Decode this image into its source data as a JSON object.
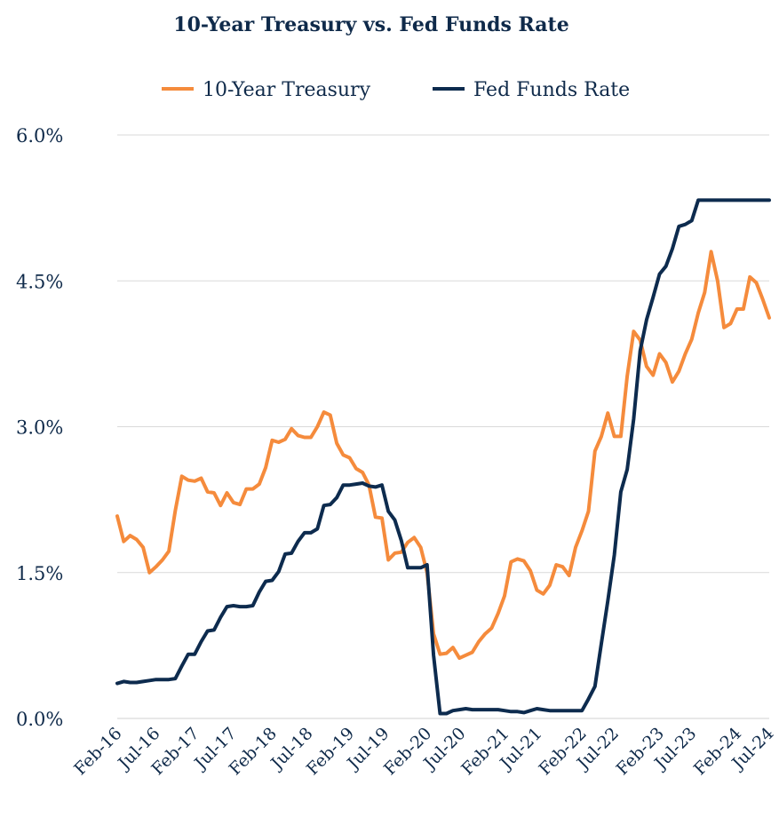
{
  "chart_data": {
    "type": "line",
    "title": "10-Year Treasury vs. Fed Funds Rate",
    "xlabel": "",
    "ylabel": "",
    "ylim": [
      0,
      6
    ],
    "yticks": [
      "0.0%",
      "1.5%",
      "3.0%",
      "4.5%",
      "6.0%"
    ],
    "grid": true,
    "legend_position": "top-center",
    "x_tick_labels": [
      "Feb-16",
      "Jul-16",
      "Feb-17",
      "Jul-17",
      "Feb-18",
      "Jul-18",
      "Feb-19",
      "Jul-19",
      "Feb-20",
      "Jul-20",
      "Feb-21",
      "Jul-21",
      "Feb-22",
      "Jul-22",
      "Feb-23",
      "Jul-23",
      "Feb-24",
      "Jul-24"
    ],
    "x_range": [
      "2016-02",
      "2024-07"
    ],
    "series": [
      {
        "name": "10-Year Treasury",
        "color": "#f58b3c",
        "points": [
          [
            "2016-02",
            2.08
          ],
          [
            "2016-03",
            1.82
          ],
          [
            "2016-04",
            1.88
          ],
          [
            "2016-05",
            1.84
          ],
          [
            "2016-06",
            1.76
          ],
          [
            "2016-07",
            1.5
          ],
          [
            "2016-08",
            1.56
          ],
          [
            "2016-09",
            1.63
          ],
          [
            "2016-10",
            1.72
          ],
          [
            "2016-11",
            2.14
          ],
          [
            "2016-12",
            2.49
          ],
          [
            "2017-01",
            2.45
          ],
          [
            "2017-02",
            2.44
          ],
          [
            "2017-03",
            2.47
          ],
          [
            "2017-04",
            2.33
          ],
          [
            "2017-05",
            2.32
          ],
          [
            "2017-06",
            2.19
          ],
          [
            "2017-07",
            2.32
          ],
          [
            "2017-08",
            2.22
          ],
          [
            "2017-09",
            2.2
          ],
          [
            "2017-10",
            2.36
          ],
          [
            "2017-11",
            2.36
          ],
          [
            "2017-12",
            2.41
          ],
          [
            "2018-01",
            2.58
          ],
          [
            "2018-02",
            2.86
          ],
          [
            "2018-03",
            2.84
          ],
          [
            "2018-04",
            2.87
          ],
          [
            "2018-05",
            2.98
          ],
          [
            "2018-06",
            2.91
          ],
          [
            "2018-07",
            2.89
          ],
          [
            "2018-08",
            2.89
          ],
          [
            "2018-09",
            3.0
          ],
          [
            "2018-10",
            3.15
          ],
          [
            "2018-11",
            3.12
          ],
          [
            "2018-12",
            2.83
          ],
          [
            "2019-01",
            2.71
          ],
          [
            "2019-02",
            2.68
          ],
          [
            "2019-03",
            2.57
          ],
          [
            "2019-04",
            2.53
          ],
          [
            "2019-05",
            2.4
          ],
          [
            "2019-06",
            2.07
          ],
          [
            "2019-07",
            2.06
          ],
          [
            "2019-08",
            1.63
          ],
          [
            "2019-09",
            1.7
          ],
          [
            "2019-10",
            1.71
          ],
          [
            "2019-11",
            1.81
          ],
          [
            "2019-12",
            1.86
          ],
          [
            "2020-01",
            1.76
          ],
          [
            "2020-02",
            1.5
          ],
          [
            "2020-03",
            0.87
          ],
          [
            "2020-04",
            0.66
          ],
          [
            "2020-05",
            0.67
          ],
          [
            "2020-06",
            0.73
          ],
          [
            "2020-07",
            0.62
          ],
          [
            "2020-08",
            0.65
          ],
          [
            "2020-09",
            0.68
          ],
          [
            "2020-10",
            0.79
          ],
          [
            "2020-11",
            0.87
          ],
          [
            "2020-12",
            0.93
          ],
          [
            "2021-01",
            1.08
          ],
          [
            "2021-02",
            1.26
          ],
          [
            "2021-03",
            1.61
          ],
          [
            "2021-04",
            1.64
          ],
          [
            "2021-05",
            1.62
          ],
          [
            "2021-06",
            1.52
          ],
          [
            "2021-07",
            1.32
          ],
          [
            "2021-08",
            1.28
          ],
          [
            "2021-09",
            1.37
          ],
          [
            "2021-10",
            1.58
          ],
          [
            "2021-11",
            1.56
          ],
          [
            "2021-12",
            1.47
          ],
          [
            "2022-01",
            1.76
          ],
          [
            "2022-02",
            1.93
          ],
          [
            "2022-03",
            2.13
          ],
          [
            "2022-04",
            2.75
          ],
          [
            "2022-05",
            2.9
          ],
          [
            "2022-06",
            3.14
          ],
          [
            "2022-07",
            2.9
          ],
          [
            "2022-08",
            2.9
          ],
          [
            "2022-09",
            3.52
          ],
          [
            "2022-10",
            3.98
          ],
          [
            "2022-11",
            3.89
          ],
          [
            "2022-12",
            3.62
          ],
          [
            "2023-01",
            3.53
          ],
          [
            "2023-02",
            3.75
          ],
          [
            "2023-03",
            3.66
          ],
          [
            "2023-04",
            3.46
          ],
          [
            "2023-05",
            3.57
          ],
          [
            "2023-06",
            3.75
          ],
          [
            "2023-07",
            3.9
          ],
          [
            "2023-08",
            4.17
          ],
          [
            "2023-09",
            4.38
          ],
          [
            "2023-10",
            4.8
          ],
          [
            "2023-11",
            4.5
          ],
          [
            "2023-12",
            4.02
          ],
          [
            "2024-01",
            4.06
          ],
          [
            "2024-02",
            4.21
          ],
          [
            "2024-03",
            4.21
          ],
          [
            "2024-04",
            4.54
          ],
          [
            "2024-05",
            4.48
          ],
          [
            "2024-06",
            4.31
          ],
          [
            "2024-07",
            4.12
          ]
        ]
      },
      {
        "name": "Fed Funds Rate",
        "color": "#0d2b4e",
        "points": [
          [
            "2016-02",
            0.36
          ],
          [
            "2016-03",
            0.38
          ],
          [
            "2016-04",
            0.37
          ],
          [
            "2016-05",
            0.37
          ],
          [
            "2016-06",
            0.38
          ],
          [
            "2016-07",
            0.39
          ],
          [
            "2016-08",
            0.4
          ],
          [
            "2016-09",
            0.4
          ],
          [
            "2016-10",
            0.4
          ],
          [
            "2016-11",
            0.41
          ],
          [
            "2016-12",
            0.54
          ],
          [
            "2017-01",
            0.66
          ],
          [
            "2017-02",
            0.66
          ],
          [
            "2017-03",
            0.79
          ],
          [
            "2017-04",
            0.9
          ],
          [
            "2017-05",
            0.91
          ],
          [
            "2017-06",
            1.04
          ],
          [
            "2017-07",
            1.15
          ],
          [
            "2017-08",
            1.16
          ],
          [
            "2017-09",
            1.15
          ],
          [
            "2017-10",
            1.15
          ],
          [
            "2017-11",
            1.16
          ],
          [
            "2017-12",
            1.3
          ],
          [
            "2018-01",
            1.41
          ],
          [
            "2018-02",
            1.42
          ],
          [
            "2018-03",
            1.51
          ],
          [
            "2018-04",
            1.69
          ],
          [
            "2018-05",
            1.7
          ],
          [
            "2018-06",
            1.82
          ],
          [
            "2018-07",
            1.91
          ],
          [
            "2018-08",
            1.91
          ],
          [
            "2018-09",
            1.95
          ],
          [
            "2018-10",
            2.19
          ],
          [
            "2018-11",
            2.2
          ],
          [
            "2018-12",
            2.27
          ],
          [
            "2019-01",
            2.4
          ],
          [
            "2019-02",
            2.4
          ],
          [
            "2019-03",
            2.41
          ],
          [
            "2019-04",
            2.42
          ],
          [
            "2019-05",
            2.39
          ],
          [
            "2019-06",
            2.38
          ],
          [
            "2019-07",
            2.4
          ],
          [
            "2019-08",
            2.13
          ],
          [
            "2019-09",
            2.04
          ],
          [
            "2019-10",
            1.83
          ],
          [
            "2019-11",
            1.55
          ],
          [
            "2019-12",
            1.55
          ],
          [
            "2020-01",
            1.55
          ],
          [
            "2020-02",
            1.58
          ],
          [
            "2020-03",
            0.65
          ],
          [
            "2020-04",
            0.05
          ],
          [
            "2020-05",
            0.05
          ],
          [
            "2020-06",
            0.08
          ],
          [
            "2020-07",
            0.09
          ],
          [
            "2020-08",
            0.1
          ],
          [
            "2020-09",
            0.09
          ],
          [
            "2020-10",
            0.09
          ],
          [
            "2020-11",
            0.09
          ],
          [
            "2020-12",
            0.09
          ],
          [
            "2021-01",
            0.09
          ],
          [
            "2021-02",
            0.08
          ],
          [
            "2021-03",
            0.07
          ],
          [
            "2021-04",
            0.07
          ],
          [
            "2021-05",
            0.06
          ],
          [
            "2021-06",
            0.08
          ],
          [
            "2021-07",
            0.1
          ],
          [
            "2021-08",
            0.09
          ],
          [
            "2021-09",
            0.08
          ],
          [
            "2021-10",
            0.08
          ],
          [
            "2021-11",
            0.08
          ],
          [
            "2021-12",
            0.08
          ],
          [
            "2022-01",
            0.08
          ],
          [
            "2022-02",
            0.08
          ],
          [
            "2022-03",
            0.2
          ],
          [
            "2022-04",
            0.33
          ],
          [
            "2022-05",
            0.77
          ],
          [
            "2022-06",
            1.21
          ],
          [
            "2022-07",
            1.68
          ],
          [
            "2022-08",
            2.33
          ],
          [
            "2022-09",
            2.56
          ],
          [
            "2022-10",
            3.08
          ],
          [
            "2022-11",
            3.78
          ],
          [
            "2022-12",
            4.1
          ],
          [
            "2023-01",
            4.33
          ],
          [
            "2023-02",
            4.57
          ],
          [
            "2023-03",
            4.65
          ],
          [
            "2023-04",
            4.83
          ],
          [
            "2023-05",
            5.06
          ],
          [
            "2023-06",
            5.08
          ],
          [
            "2023-07",
            5.12
          ],
          [
            "2023-08",
            5.33
          ],
          [
            "2023-09",
            5.33
          ],
          [
            "2023-10",
            5.33
          ],
          [
            "2023-11",
            5.33
          ],
          [
            "2023-12",
            5.33
          ],
          [
            "2024-01",
            5.33
          ],
          [
            "2024-02",
            5.33
          ],
          [
            "2024-03",
            5.33
          ],
          [
            "2024-04",
            5.33
          ],
          [
            "2024-05",
            5.33
          ],
          [
            "2024-06",
            5.33
          ],
          [
            "2024-07",
            5.33
          ]
        ]
      }
    ]
  }
}
